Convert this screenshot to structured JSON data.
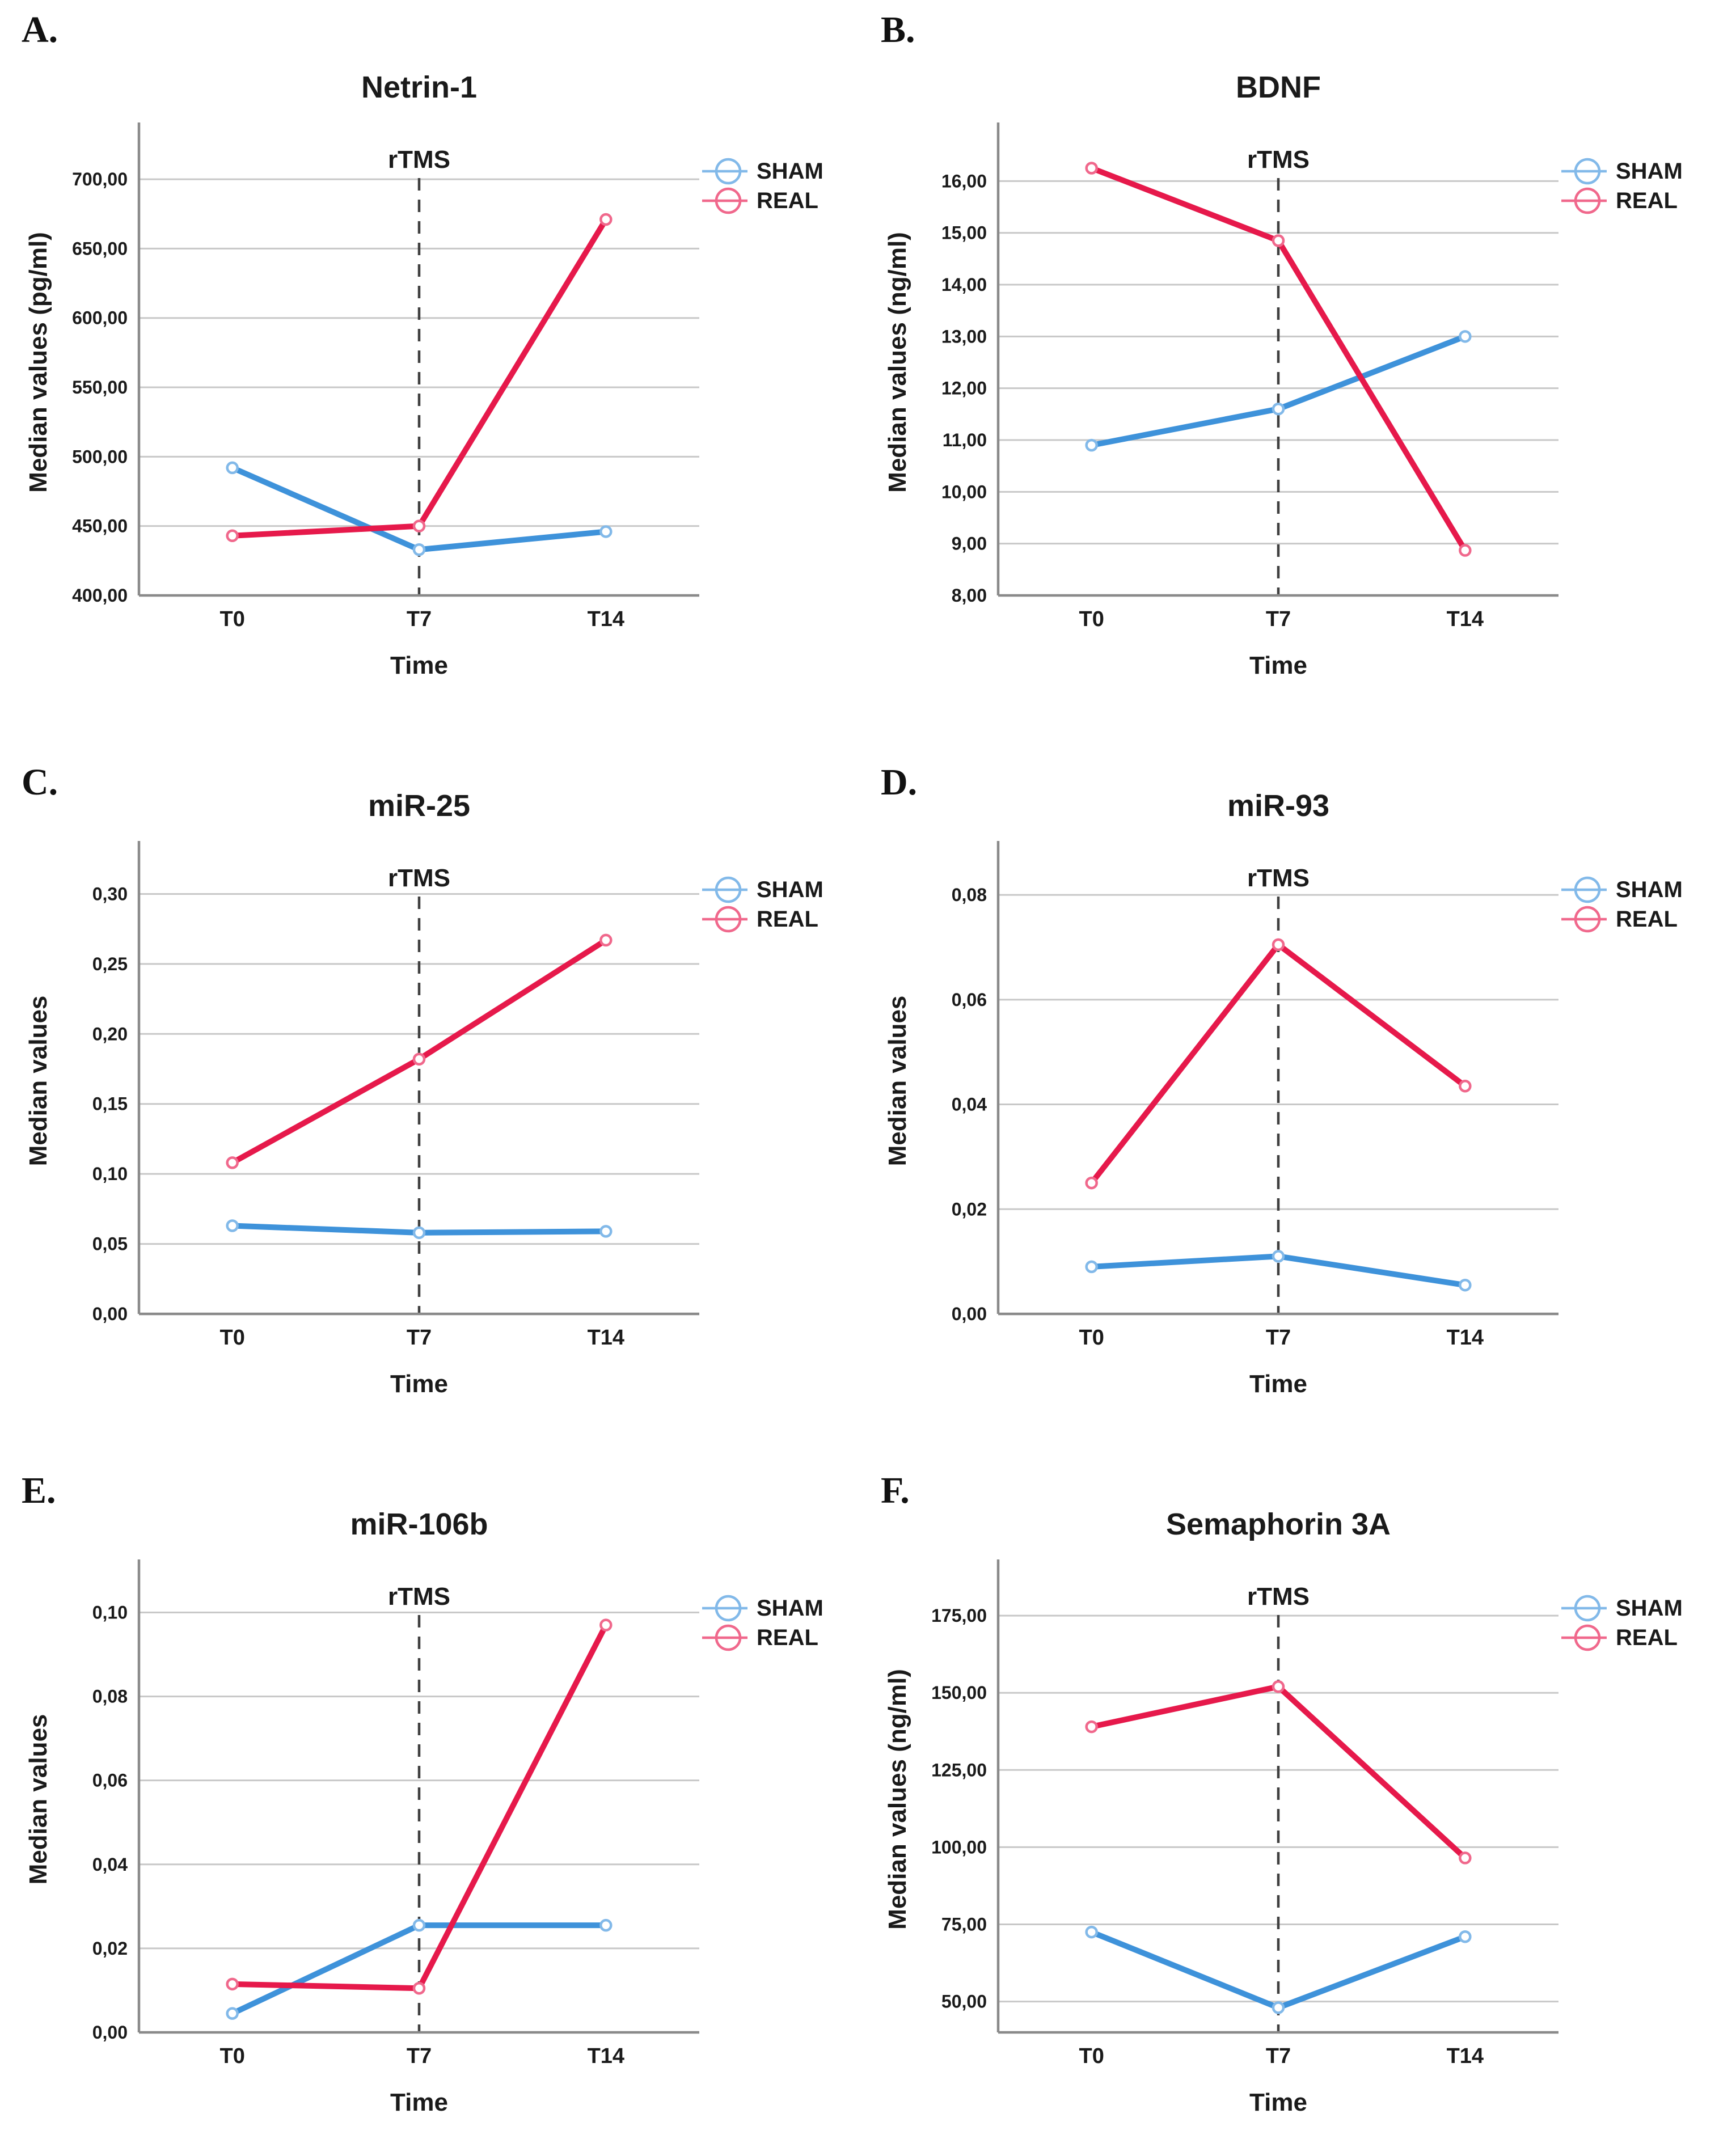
{
  "colors": {
    "background": "#FFFFFF",
    "text": "#1A1A1A",
    "gridline": "#C8C8C8",
    "axis": "#8A8A8A",
    "rtms_dash": "#404040",
    "series": {
      "SHAM": {
        "line": "#3E92DA",
        "marker": "#82B9E9"
      },
      "REAL": {
        "line": "#E6194B",
        "marker": "#F0688C"
      }
    }
  },
  "legend": {
    "items": [
      "SHAM",
      "REAL"
    ],
    "position": "right-top"
  },
  "chart_data": [
    {
      "type": "line",
      "panel": "A.",
      "title": "Netrin-1",
      "xlabel": "Time",
      "ylabel": "Median values (pg/ml)",
      "categories": [
        "T0",
        "T7",
        "T14"
      ],
      "annotation": {
        "label": "rTMS",
        "at_category": "T7",
        "style": "dashed-vertical"
      },
      "ylim": [
        400,
        736
      ],
      "grid": true,
      "yticks": [
        {
          "v": 400,
          "label": "400,00"
        },
        {
          "v": 450,
          "label": "450,00"
        },
        {
          "v": 500,
          "label": "500,00"
        },
        {
          "v": 550,
          "label": "550,00"
        },
        {
          "v": 600,
          "label": "600,00"
        },
        {
          "v": 650,
          "label": "650,00"
        },
        {
          "v": 700,
          "label": "700,00"
        }
      ],
      "series": [
        {
          "name": "SHAM",
          "values": [
            492,
            433,
            446
          ]
        },
        {
          "name": "REAL",
          "values": [
            443,
            450,
            671
          ]
        }
      ]
    },
    {
      "type": "line",
      "panel": "B.",
      "title": "BDNF",
      "xlabel": "Time",
      "ylabel": "Median values (ng/ml)",
      "categories": [
        "T0",
        "T7",
        "T14"
      ],
      "annotation": {
        "label": "rTMS",
        "at_category": "T7",
        "style": "dashed-vertical"
      },
      "ylim": [
        8,
        17
      ],
      "grid": true,
      "yticks": [
        {
          "v": 8,
          "label": "8,00"
        },
        {
          "v": 9,
          "label": "9,00"
        },
        {
          "v": 10,
          "label": "10,00"
        },
        {
          "v": 11,
          "label": "11,00"
        },
        {
          "v": 12,
          "label": "12,00"
        },
        {
          "v": 13,
          "label": "13,00"
        },
        {
          "v": 14,
          "label": "14,00"
        },
        {
          "v": 15,
          "label": "15,00"
        },
        {
          "v": 16,
          "label": "16,00"
        }
      ],
      "series": [
        {
          "name": "SHAM",
          "values": [
            10.9,
            11.6,
            13.0
          ]
        },
        {
          "name": "REAL",
          "values": [
            16.25,
            14.85,
            8.87
          ]
        }
      ]
    },
    {
      "type": "line",
      "panel": "C.",
      "title": "miR-25",
      "xlabel": "Time",
      "ylabel": "Median values",
      "categories": [
        "T0",
        "T7",
        "T14"
      ],
      "annotation": {
        "label": "rTMS",
        "at_category": "T7",
        "style": "dashed-vertical"
      },
      "ylim": [
        0,
        0.333
      ],
      "grid": true,
      "yticks": [
        {
          "v": 0,
          "label": "0,00"
        },
        {
          "v": 0.05,
          "label": "0,05"
        },
        {
          "v": 0.1,
          "label": "0,10"
        },
        {
          "v": 0.15,
          "label": "0,15"
        },
        {
          "v": 0.2,
          "label": "0,20"
        },
        {
          "v": 0.25,
          "label": "0,25"
        },
        {
          "v": 0.3,
          "label": "0,30"
        }
      ],
      "series": [
        {
          "name": "SHAM",
          "values": [
            0.063,
            0.058,
            0.059
          ]
        },
        {
          "name": "REAL",
          "values": [
            0.108,
            0.182,
            0.267
          ]
        }
      ]
    },
    {
      "type": "line",
      "panel": "D.",
      "title": "miR-93",
      "xlabel": "Time",
      "ylabel": "Median values",
      "categories": [
        "T0",
        "T7",
        "T14"
      ],
      "annotation": {
        "label": "rTMS",
        "at_category": "T7",
        "style": "dashed-vertical"
      },
      "ylim": [
        0,
        0.089
      ],
      "grid": true,
      "yticks": [
        {
          "v": 0,
          "label": "0,00"
        },
        {
          "v": 0.02,
          "label": "0,02"
        },
        {
          "v": 0.04,
          "label": "0,04"
        },
        {
          "v": 0.06,
          "label": "0,06"
        },
        {
          "v": 0.08,
          "label": "0,08"
        }
      ],
      "series": [
        {
          "name": "SHAM",
          "values": [
            0.009,
            0.011,
            0.0055
          ]
        },
        {
          "name": "REAL",
          "values": [
            0.025,
            0.0705,
            0.0435
          ]
        }
      ]
    },
    {
      "type": "line",
      "panel": "E.",
      "title": "miR-106b",
      "xlabel": "Time",
      "ylabel": "Median values",
      "categories": [
        "T0",
        "T7",
        "T14"
      ],
      "annotation": {
        "label": "rTMS",
        "at_category": "T7",
        "style": "dashed-vertical"
      },
      "ylim": [
        0,
        0.111
      ],
      "grid": true,
      "yticks": [
        {
          "v": 0,
          "label": "0,00"
        },
        {
          "v": 0.02,
          "label": "0,02"
        },
        {
          "v": 0.04,
          "label": "0,04"
        },
        {
          "v": 0.06,
          "label": "0,06"
        },
        {
          "v": 0.08,
          "label": "0,08"
        },
        {
          "v": 0.1,
          "label": "0,10"
        }
      ],
      "series": [
        {
          "name": "SHAM",
          "values": [
            0.0045,
            0.0255,
            0.0255
          ]
        },
        {
          "name": "REAL",
          "values": [
            0.0115,
            0.0105,
            0.097
          ]
        }
      ]
    },
    {
      "type": "line",
      "panel": "F.",
      "title": "Semaphorin 3A",
      "xlabel": "Time",
      "ylabel": "Median values (ng/ml)",
      "categories": [
        "T0",
        "T7",
        "T14"
      ],
      "annotation": {
        "label": "rTMS",
        "at_category": "T7",
        "style": "dashed-vertical"
      },
      "ylim": [
        40,
        191
      ],
      "grid": true,
      "yticks": [
        {
          "v": 50,
          "label": "50,00"
        },
        {
          "v": 75,
          "label": "75,00"
        },
        {
          "v": 100,
          "label": "100,00"
        },
        {
          "v": 125,
          "label": "125,00"
        },
        {
          "v": 150,
          "label": "150,00"
        },
        {
          "v": 175,
          "label": "175,00"
        }
      ],
      "series": [
        {
          "name": "SHAM",
          "values": [
            72.5,
            48,
            71
          ]
        },
        {
          "name": "REAL",
          "values": [
            139,
            152,
            96.5
          ]
        }
      ]
    }
  ]
}
